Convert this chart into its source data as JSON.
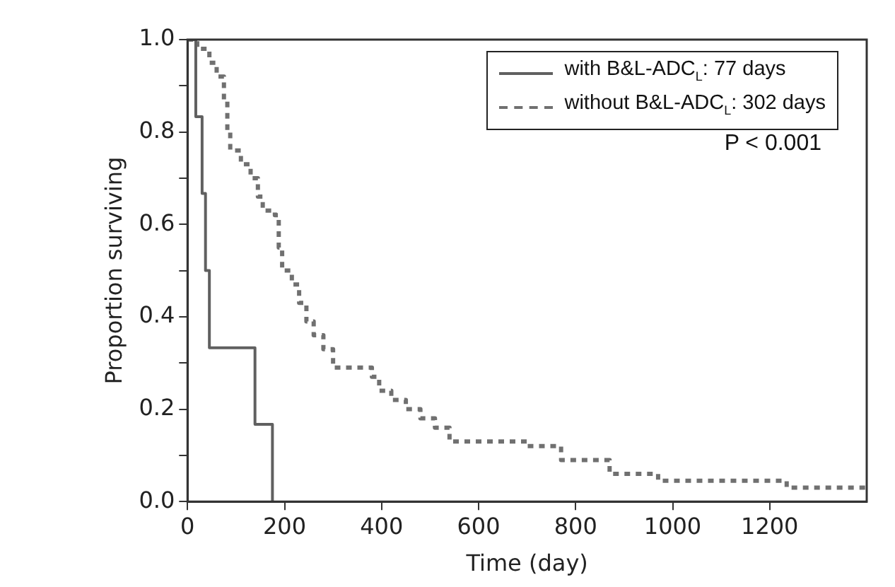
{
  "chart_data": {
    "type": "step",
    "xlabel": "Time (day)",
    "ylabel": "Proportion surviving",
    "xlim": [
      0,
      1400
    ],
    "xticks": [
      0,
      200,
      400,
      600,
      800,
      1000,
      1200
    ],
    "ylim": [
      0,
      1
    ],
    "yticks": [
      {
        "value": 0,
        "label": "0.0"
      },
      {
        "value": 0.1,
        "label": null
      },
      {
        "value": 0.2,
        "label": "0.2"
      },
      {
        "value": 0.3,
        "label": null
      },
      {
        "value": 0.4,
        "label": "0.4"
      },
      {
        "value": 0.5,
        "label": null
      },
      {
        "value": 0.6,
        "label": "0.6"
      },
      {
        "value": 0.7,
        "label": null
      },
      {
        "value": 0.8,
        "label": "0.8"
      },
      {
        "value": 0.9,
        "label": null
      },
      {
        "value": 1,
        "label": "1.0"
      }
    ],
    "grid": false,
    "legend": "top right",
    "marker": "none",
    "annotations": [
      "P < 0.001"
    ],
    "series": [
      {
        "name": "with B&L-ADC$_{L}$: 77 days",
        "color": "#606060",
        "line_style": "solid",
        "x": [
          0,
          17,
          30,
          37,
          45,
          139,
          175
        ],
        "values": [
          1,
          0.833,
          0.667,
          0.5,
          0.333,
          0.167,
          0
        ]
      },
      {
        "name": "without B&L-ADC$_{L}$: 302 days",
        "color": "#707070",
        "line_style": "dashed",
        "x": [
          0,
          20,
          45,
          60,
          75,
          82,
          88,
          110,
          130,
          145,
          155,
          180,
          188,
          195,
          215,
          230,
          245,
          260,
          280,
          300,
          380,
          395,
          420,
          450,
          480,
          510,
          540,
          700,
          770,
          870,
          970,
          1235,
          1400
        ],
        "values": [
          1,
          0.98,
          0.95,
          0.92,
          0.87,
          0.8,
          0.76,
          0.73,
          0.7,
          0.66,
          0.63,
          0.62,
          0.55,
          0.5,
          0.47,
          0.43,
          0.39,
          0.36,
          0.33,
          0.29,
          0.27,
          0.24,
          0.22,
          0.2,
          0.18,
          0.16,
          0.13,
          0.12,
          0.09,
          0.06,
          0.045,
          0.03,
          0.03
        ]
      }
    ]
  }
}
